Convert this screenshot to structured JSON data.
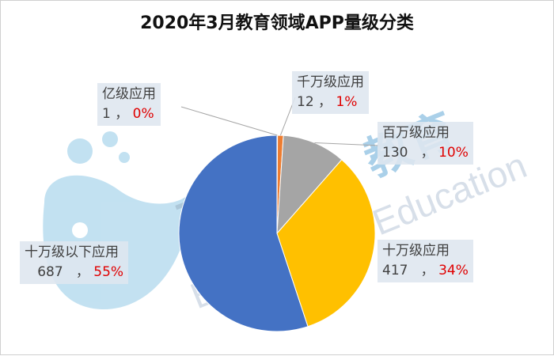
{
  "chart_data": {
    "type": "pie",
    "title": "2020年3月教育领域APP量级分类",
    "slices": [
      {
        "name": "亿级应用",
        "count": "1",
        "percent": "0%",
        "value": 1,
        "color": "#ed7d31"
      },
      {
        "name": "千万级应用",
        "count": "12",
        "percent": "1%",
        "value": 12,
        "color": "#ed7d31"
      },
      {
        "name": "百万级应用",
        "count": "130",
        "percent": "10%",
        "value": 130,
        "color": "#a5a5a5"
      },
      {
        "name": "十万级应用",
        "count": "417",
        "percent": "34%",
        "value": 417,
        "color": "#ffc000"
      },
      {
        "name": "十万级以下应用",
        "count": "687",
        "percent": "55%",
        "value": 687,
        "color": "#4472c4"
      }
    ]
  },
  "watermark": {
    "brand_cn_1": "蓝鲸",
    "brand_cn_2": "教育",
    "brand_en": "Blue Whale Education",
    "whale_color": "#a9d3ea"
  }
}
